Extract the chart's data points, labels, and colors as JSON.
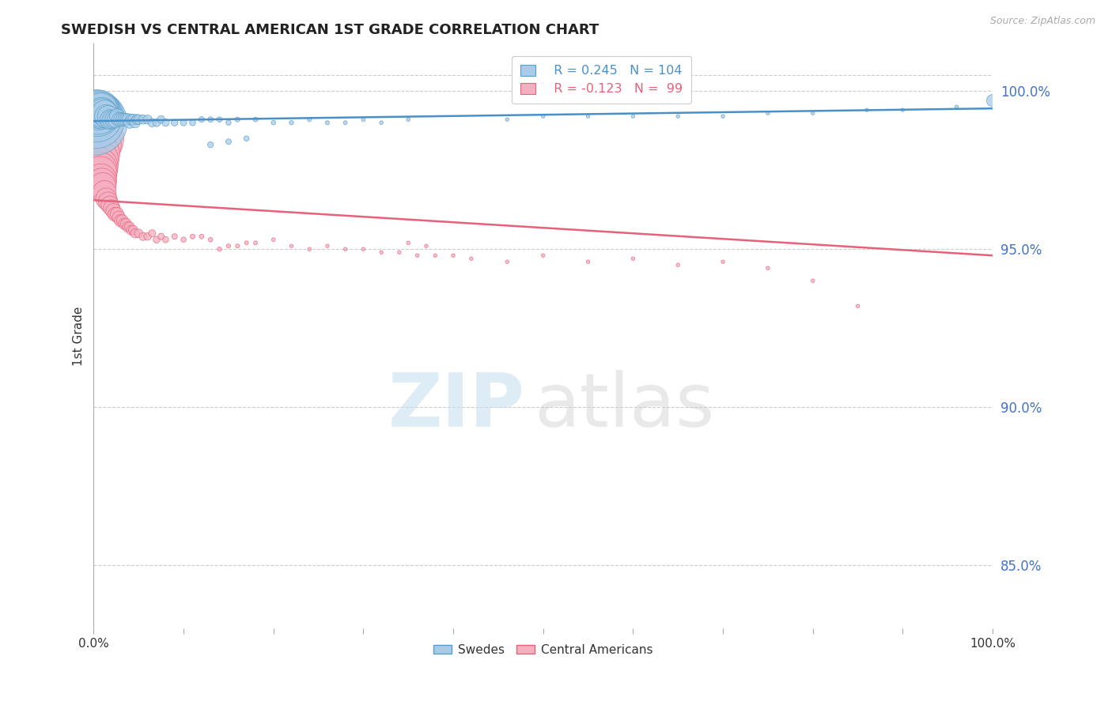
{
  "title": "SWEDISH VS CENTRAL AMERICAN 1ST GRADE CORRELATION CHART",
  "source": "Source: ZipAtlas.com",
  "ylabel": "1st Grade",
  "right_yticks": [
    "100.0%",
    "95.0%",
    "90.0%",
    "85.0%"
  ],
  "right_ytick_vals": [
    1.0,
    0.95,
    0.9,
    0.85
  ],
  "xlim": [
    0.0,
    1.0
  ],
  "ylim": [
    0.83,
    1.015
  ],
  "legend_blue_label": "Swedes",
  "legend_pink_label": "Central Americans",
  "legend_R_blue": "R = 0.245",
  "legend_N_blue": "N = 104",
  "legend_R_pink": "R = -0.123",
  "legend_N_pink": "N =  99",
  "blue_color": "#a8cce8",
  "pink_color": "#f4b0c0",
  "blue_edge_color": "#5b9dc9",
  "pink_edge_color": "#e8607a",
  "blue_line_color": "#4a90c8",
  "pink_line_color": "#e8607a",
  "title_color": "#222222",
  "right_tick_color": "#4472c4",
  "grid_color": "#cccccc",
  "blue_scatter_x": [
    0.001,
    0.002,
    0.003,
    0.004,
    0.005,
    0.006,
    0.007,
    0.008,
    0.009,
    0.01,
    0.012,
    0.014,
    0.016,
    0.018,
    0.02,
    0.022,
    0.024,
    0.026,
    0.028,
    0.03,
    0.032,
    0.034,
    0.036,
    0.038,
    0.04,
    0.042,
    0.044,
    0.046,
    0.048,
    0.05,
    0.055,
    0.06,
    0.065,
    0.07,
    0.075,
    0.08,
    0.09,
    0.1,
    0.11,
    0.12,
    0.13,
    0.14,
    0.15,
    0.16,
    0.18,
    0.2,
    0.22,
    0.24,
    0.26,
    0.28,
    0.3,
    0.32,
    0.35,
    0.13,
    0.15,
    0.17,
    0.46,
    0.5,
    0.55,
    0.6,
    0.65,
    0.7,
    0.75,
    0.8,
    0.86,
    0.9,
    0.96,
    1.0
  ],
  "blue_scatter_y": [
    0.99,
    0.991,
    0.992,
    0.993,
    0.993,
    0.994,
    0.994,
    0.994,
    0.993,
    0.993,
    0.993,
    0.992,
    0.992,
    0.991,
    0.991,
    0.991,
    0.991,
    0.992,
    0.991,
    0.991,
    0.991,
    0.991,
    0.991,
    0.991,
    0.99,
    0.991,
    0.991,
    0.99,
    0.991,
    0.991,
    0.991,
    0.991,
    0.99,
    0.99,
    0.991,
    0.99,
    0.99,
    0.99,
    0.99,
    0.991,
    0.991,
    0.991,
    0.99,
    0.991,
    0.991,
    0.99,
    0.99,
    0.991,
    0.99,
    0.99,
    0.991,
    0.99,
    0.991,
    0.983,
    0.984,
    0.985,
    0.991,
    0.992,
    0.992,
    0.992,
    0.992,
    0.992,
    0.993,
    0.993,
    0.994,
    0.994,
    0.995,
    0.997
  ],
  "blue_scatter_size": [
    3500,
    2800,
    2200,
    1800,
    1500,
    1300,
    1100,
    950,
    820,
    700,
    560,
    450,
    380,
    320,
    280,
    240,
    210,
    190,
    170,
    155,
    140,
    130,
    120,
    115,
    105,
    100,
    95,
    90,
    85,
    80,
    70,
    65,
    58,
    52,
    48,
    44,
    38,
    33,
    30,
    27,
    25,
    23,
    22,
    20,
    18,
    16,
    15,
    14,
    13,
    12,
    12,
    11,
    11,
    28,
    25,
    22,
    10,
    10,
    10,
    10,
    10,
    10,
    10,
    10,
    10,
    10,
    10,
    120
  ],
  "pink_scatter_x": [
    0.001,
    0.002,
    0.003,
    0.004,
    0.005,
    0.006,
    0.007,
    0.008,
    0.009,
    0.01,
    0.012,
    0.014,
    0.016,
    0.018,
    0.02,
    0.022,
    0.024,
    0.026,
    0.028,
    0.03,
    0.032,
    0.034,
    0.036,
    0.038,
    0.04,
    0.042,
    0.044,
    0.046,
    0.05,
    0.055,
    0.06,
    0.065,
    0.07,
    0.075,
    0.08,
    0.09,
    0.1,
    0.11,
    0.12,
    0.13,
    0.14,
    0.15,
    0.16,
    0.17,
    0.18,
    0.2,
    0.22,
    0.24,
    0.26,
    0.28,
    0.3,
    0.32,
    0.34,
    0.36,
    0.38,
    0.4,
    0.35,
    0.37,
    0.42,
    0.46,
    0.5,
    0.55,
    0.6,
    0.65,
    0.7,
    0.75,
    0.8,
    0.85
  ],
  "pink_scatter_y": [
    0.985,
    0.983,
    0.98,
    0.978,
    0.976,
    0.975,
    0.974,
    0.972,
    0.971,
    0.97,
    0.968,
    0.966,
    0.965,
    0.964,
    0.963,
    0.962,
    0.961,
    0.961,
    0.96,
    0.959,
    0.959,
    0.958,
    0.958,
    0.957,
    0.957,
    0.956,
    0.956,
    0.955,
    0.955,
    0.954,
    0.954,
    0.955,
    0.953,
    0.954,
    0.953,
    0.954,
    0.953,
    0.954,
    0.954,
    0.953,
    0.95,
    0.951,
    0.951,
    0.952,
    0.952,
    0.953,
    0.951,
    0.95,
    0.951,
    0.95,
    0.95,
    0.949,
    0.949,
    0.948,
    0.948,
    0.948,
    0.952,
    0.951,
    0.947,
    0.946,
    0.948,
    0.946,
    0.947,
    0.945,
    0.946,
    0.944,
    0.94,
    0.932
  ],
  "pink_scatter_size": [
    2800,
    2200,
    1800,
    1500,
    1300,
    1100,
    950,
    820,
    700,
    580,
    450,
    370,
    310,
    260,
    225,
    195,
    170,
    155,
    140,
    125,
    115,
    106,
    98,
    90,
    83,
    78,
    73,
    68,
    60,
    53,
    47,
    42,
    38,
    34,
    31,
    26,
    22,
    19,
    18,
    16,
    15,
    14,
    13,
    12,
    12,
    11,
    10,
    10,
    10,
    10,
    10,
    10,
    10,
    10,
    10,
    10,
    10,
    10,
    10,
    10,
    10,
    10,
    10,
    10,
    10,
    10,
    10,
    10
  ],
  "blue_trendline_x": [
    0.0,
    1.0
  ],
  "blue_trendline_y": [
    0.9905,
    0.9945
  ],
  "pink_trendline_x": [
    0.0,
    1.0
  ],
  "pink_trendline_y": [
    0.9655,
    0.948
  ]
}
